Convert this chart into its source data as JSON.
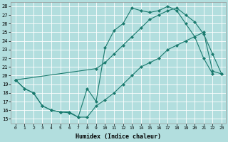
{
  "xlabel": "Humidex (Indice chaleur)",
  "background_color": "#b2dede",
  "grid_color": "#ffffff",
  "line_color": "#1a7a6e",
  "xlim": [
    -0.5,
    23.5
  ],
  "ylim": [
    14.5,
    28.5
  ],
  "yticks": [
    15,
    16,
    17,
    18,
    19,
    20,
    21,
    22,
    23,
    24,
    25,
    26,
    27,
    28
  ],
  "xticks": [
    0,
    1,
    2,
    3,
    4,
    5,
    6,
    7,
    8,
    9,
    10,
    11,
    12,
    13,
    14,
    15,
    16,
    17,
    18,
    19,
    20,
    21,
    22,
    23
  ],
  "line_top_x": [
    0,
    1,
    2,
    3,
    4,
    5,
    6,
    7,
    8,
    9,
    10,
    11,
    12,
    13,
    14,
    15,
    16,
    17,
    18,
    19,
    20,
    21,
    22
  ],
  "line_top_y": [
    19.5,
    18.5,
    18.0,
    16.5,
    16.0,
    15.8,
    15.7,
    15.2,
    18.5,
    17.0,
    23.2,
    25.2,
    26.0,
    27.8,
    27.5,
    27.3,
    27.5,
    28.0,
    27.5,
    26.0,
    24.5,
    22.0,
    20.2
  ],
  "line_mid_x": [
    0,
    9,
    10,
    11,
    12,
    13,
    14,
    15,
    16,
    17,
    18,
    19,
    20,
    21,
    22,
    23
  ],
  "line_mid_y": [
    19.5,
    20.8,
    21.5,
    22.5,
    23.5,
    24.5,
    25.5,
    26.5,
    27.0,
    27.5,
    27.8,
    27.0,
    26.2,
    24.8,
    22.5,
    20.2
  ],
  "line_bot_x": [
    0,
    1,
    2,
    3,
    4,
    5,
    6,
    7,
    8,
    9,
    10,
    11,
    12,
    13,
    14,
    15,
    16,
    17,
    18,
    19,
    20,
    21,
    22,
    23
  ],
  "line_bot_y": [
    19.5,
    18.5,
    18.0,
    16.5,
    16.0,
    15.8,
    15.8,
    15.2,
    15.2,
    16.5,
    17.2,
    18.0,
    19.0,
    20.0,
    21.0,
    21.5,
    22.0,
    23.0,
    23.5,
    24.0,
    24.5,
    25.0,
    20.5,
    20.2
  ]
}
